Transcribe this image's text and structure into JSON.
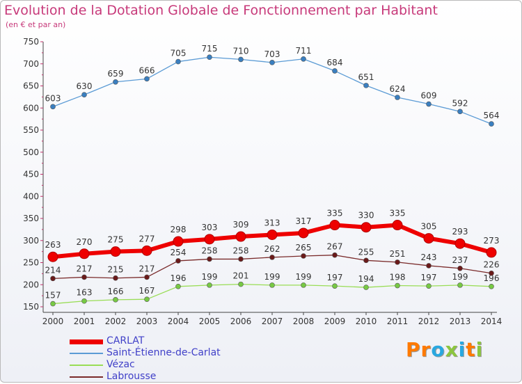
{
  "title": "Evolution de la Dotation Globale de Fonctionnement par Habitant",
  "subtitle": "(en € et par an)",
  "logo": {
    "text": "Proxiti",
    "letter_colors": [
      "#ff7a00",
      "#ff7a00",
      "#29a8e0",
      "#8cc63f",
      "#29a8e0",
      "#ff7a00",
      "#8cc63f"
    ]
  },
  "chart_data": {
    "type": "line",
    "x": [
      2000,
      2001,
      2002,
      2003,
      2004,
      2005,
      2006,
      2007,
      2008,
      2009,
      2010,
      2011,
      2012,
      2013,
      2014
    ],
    "ylim": [
      150,
      750
    ],
    "yticks": [
      150,
      200,
      250,
      300,
      350,
      400,
      450,
      500,
      550,
      600,
      650,
      700,
      750
    ],
    "grid": false,
    "legend_position": "bottom-left",
    "series": [
      {
        "name": "Saint-Étienne-de-Carlat",
        "color": "#5b9bd5",
        "marker": "#3a7fc0",
        "values": [
          603,
          630,
          659,
          666,
          705,
          715,
          710,
          703,
          711,
          684,
          651,
          624,
          609,
          592,
          564
        ]
      },
      {
        "name": "Vézac",
        "color": "#99dd55",
        "marker": "#77c944",
        "values": [
          157,
          163,
          166,
          167,
          196,
          199,
          201,
          199,
          199,
          197,
          194,
          198,
          197,
          199,
          196
        ]
      },
      {
        "name": "Labrousse",
        "color": "#7a2a2a",
        "marker": "#6a1a1a",
        "values": [
          214,
          217,
          215,
          217,
          254,
          258,
          258,
          262,
          265,
          267,
          255,
          251,
          243,
          237,
          226
        ]
      },
      {
        "name": "CARLAT",
        "color": "#ee0000",
        "marker": "#ee0000",
        "values": [
          263,
          270,
          275,
          277,
          298,
          303,
          309,
          313,
          317,
          335,
          330,
          335,
          305,
          293,
          273
        ]
      }
    ]
  }
}
